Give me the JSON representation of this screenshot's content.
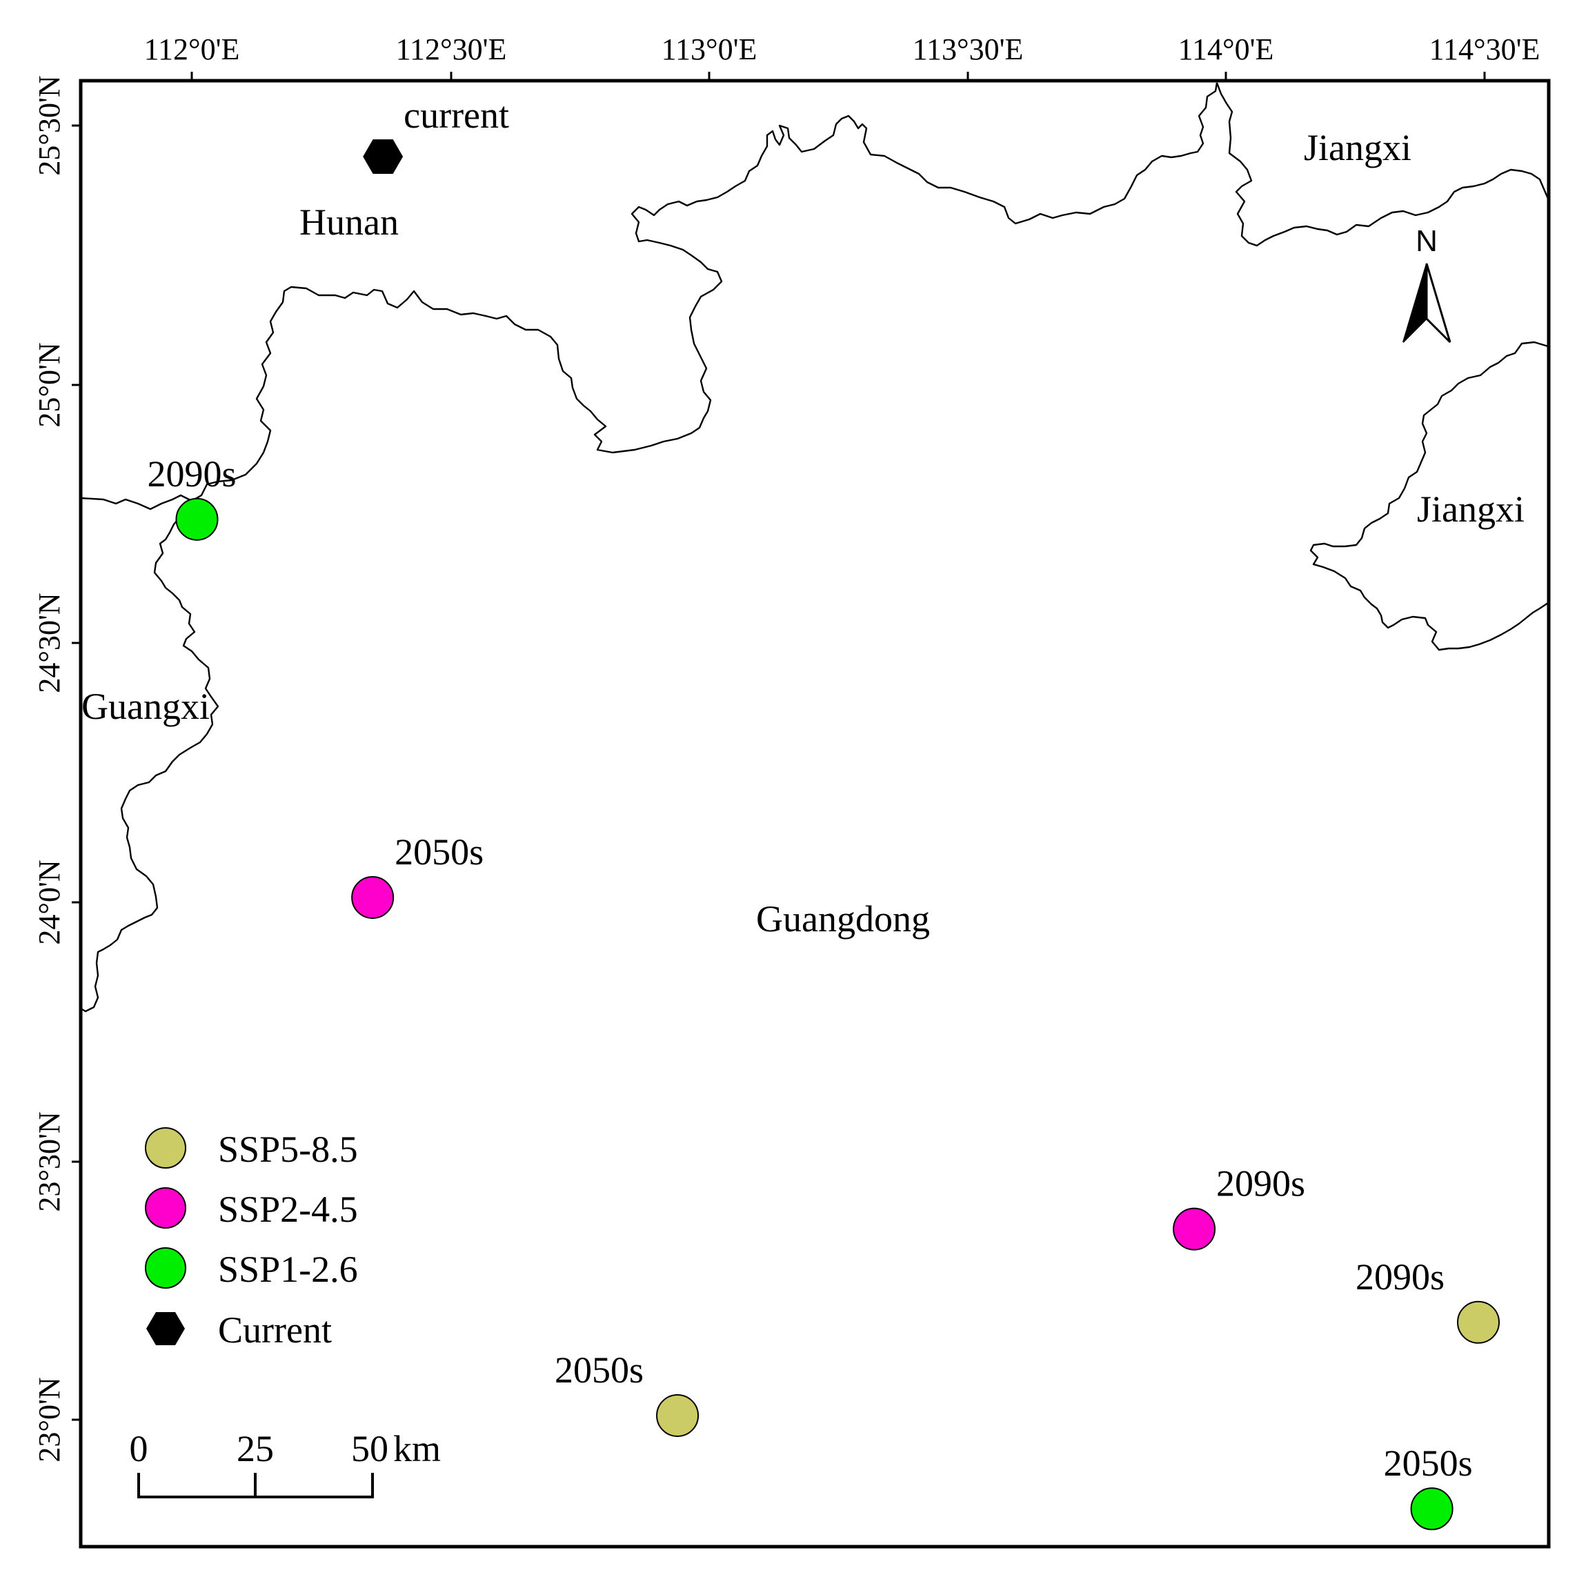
{
  "axes": {
    "top_ticks": [
      "112°0'E",
      "112°30'E",
      "113°0'E",
      "113°30'E",
      "114°0'E",
      "114°30'E"
    ],
    "left_ticks": [
      "25°30'N",
      "25°0'N",
      "24°30'N",
      "24°0'N",
      "23°30'N",
      "23°0'N"
    ]
  },
  "provinces": [
    "Hunan",
    "Jiangxi",
    "Jiangxi",
    "Guangxi",
    "Guangdong"
  ],
  "north_arrow": {
    "label": "N"
  },
  "points": [
    {
      "label": "current",
      "scenario": "Current",
      "lon": 112.37,
      "lat": 25.44
    },
    {
      "label": "2090s",
      "scenario": "SSP1-2.6",
      "lon": 112.01,
      "lat": 24.74
    },
    {
      "label": "2050s",
      "scenario": "SSP2-4.5",
      "lon": 112.35,
      "lat": 24.01
    },
    {
      "label": "2090s",
      "scenario": "SSP2-4.5",
      "lon": 113.94,
      "lat": 23.37
    },
    {
      "label": "2050s",
      "scenario": "SSP5-8.5",
      "lon": 112.94,
      "lat": 23.01
    },
    {
      "label": "2090s",
      "scenario": "SSP5-8.5",
      "lon": 114.49,
      "lat": 23.19
    },
    {
      "label": "2050s",
      "scenario": "SSP1-2.6",
      "lon": 114.4,
      "lat": 22.83
    }
  ],
  "legend": [
    {
      "label": "SSP5-8.5",
      "color": "#cccc66",
      "shape": "circle"
    },
    {
      "label": "SSP2-4.5",
      "color": "#ff00cc",
      "shape": "circle"
    },
    {
      "label": "SSP1-2.6",
      "color": "#00ee00",
      "shape": "circle"
    },
    {
      "label": "Current",
      "color": "#000000",
      "shape": "hexagon"
    }
  ],
  "scale_bar": {
    "ticks": [
      "0",
      "25",
      "50"
    ],
    "unit": "km"
  }
}
